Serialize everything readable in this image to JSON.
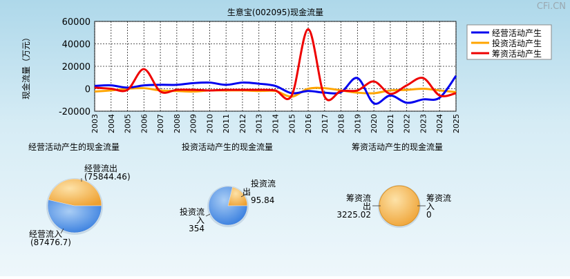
{
  "watermark": "CFi.CN",
  "chart_data": [
    {
      "type": "line",
      "title": "生意宝(002095)现金流量",
      "ylabel": "现金流量（万元）",
      "ylim": [
        -20000,
        60000
      ],
      "yticks": [
        "60000",
        "40000",
        "20000",
        "0",
        "-20000"
      ],
      "grid": true,
      "legend_position": "top-right",
      "x": [
        "2003",
        "2004",
        "2005",
        "2006",
        "2007",
        "2008",
        "2009",
        "2010",
        "2011",
        "2012",
        "2013",
        "2014",
        "2015",
        "2016",
        "2017",
        "2018",
        "2019",
        "2020",
        "2021",
        "2022",
        "2023",
        "2024",
        "2025"
      ],
      "series": [
        {
          "name": "经营活动产生",
          "color": "#0000ee",
          "values": [
            2500,
            3000,
            1000,
            3000,
            3500,
            3500,
            5000,
            5500,
            3500,
            5500,
            4500,
            2500,
            -4000,
            -2000,
            -3500,
            -3000,
            9500,
            -13000,
            -6000,
            -12500,
            -9500,
            -8000,
            11500
          ]
        },
        {
          "name": "投资活动产生",
          "color": "#ffa500",
          "values": [
            -2500,
            -1500,
            0,
            500,
            -1500,
            -2000,
            -2500,
            -1500,
            -1500,
            -1500,
            -2000,
            -2000,
            -7000,
            0,
            500,
            -1500,
            -3500,
            -4000,
            -1500,
            -1000,
            0,
            -1500,
            -3000
          ]
        },
        {
          "name": "筹资活动产生",
          "color": "#ee0000",
          "values": [
            1000,
            0,
            -1000,
            17500,
            -2500,
            -1000,
            -1000,
            -1500,
            -1000,
            -1000,
            -1000,
            -1500,
            -6000,
            53000,
            -7000,
            -2000,
            -1500,
            6500,
            -4500,
            3000,
            9500,
            -6000,
            -4000
          ]
        }
      ]
    },
    {
      "type": "pie",
      "title": "经营活动产生的现金流量",
      "slices": [
        {
          "label": "经营流出",
          "value": 75844.46,
          "display": "(75844.46)",
          "color": "#f2a93b"
        },
        {
          "label": "经营流入",
          "value": 87476.7,
          "display": "(87476.7)",
          "color": "#3d86e6"
        }
      ]
    },
    {
      "type": "pie",
      "title": "投资活动产生的现金流量",
      "slices": [
        {
          "label": "投资流出",
          "value": 95.84,
          "display": "95.84",
          "color": "#f2a93b"
        },
        {
          "label": "投资流入",
          "value": 354,
          "display": "354",
          "color": "#3d86e6"
        }
      ]
    },
    {
      "type": "pie",
      "title": "筹资活动产生的现金流量",
      "slices": [
        {
          "label": "筹资流出",
          "value": 3225.02,
          "display": "3225.02",
          "color": "#f2a93b"
        },
        {
          "label": "筹资流入",
          "value": 0,
          "display": "0",
          "color": "#3d86e6"
        }
      ]
    }
  ]
}
